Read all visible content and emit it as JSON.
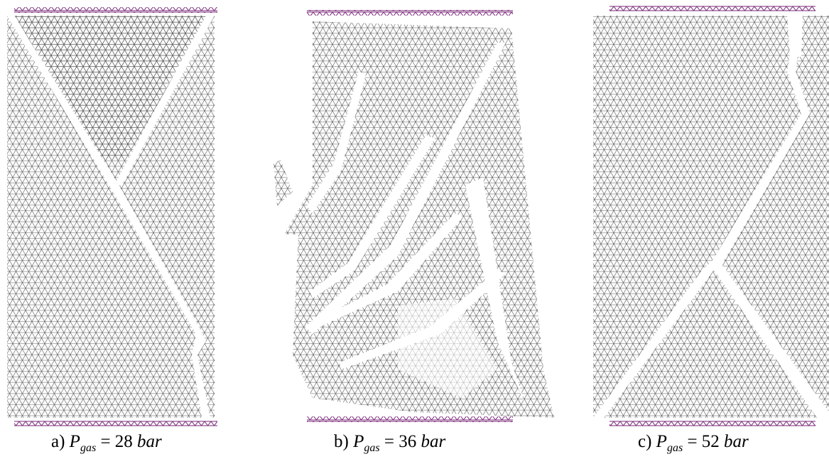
{
  "panels": [
    {
      "label": "a)",
      "variable": "P",
      "subscript": "gas",
      "relation": "=",
      "value": 28,
      "unit": "bar"
    },
    {
      "label": "b)",
      "variable": "P",
      "subscript": "gas",
      "relation": "=",
      "value": 36,
      "unit": "bar"
    },
    {
      "label": "c)",
      "variable": "P",
      "subscript": "gas",
      "relation": "=",
      "value": 52,
      "unit": "bar"
    }
  ]
}
